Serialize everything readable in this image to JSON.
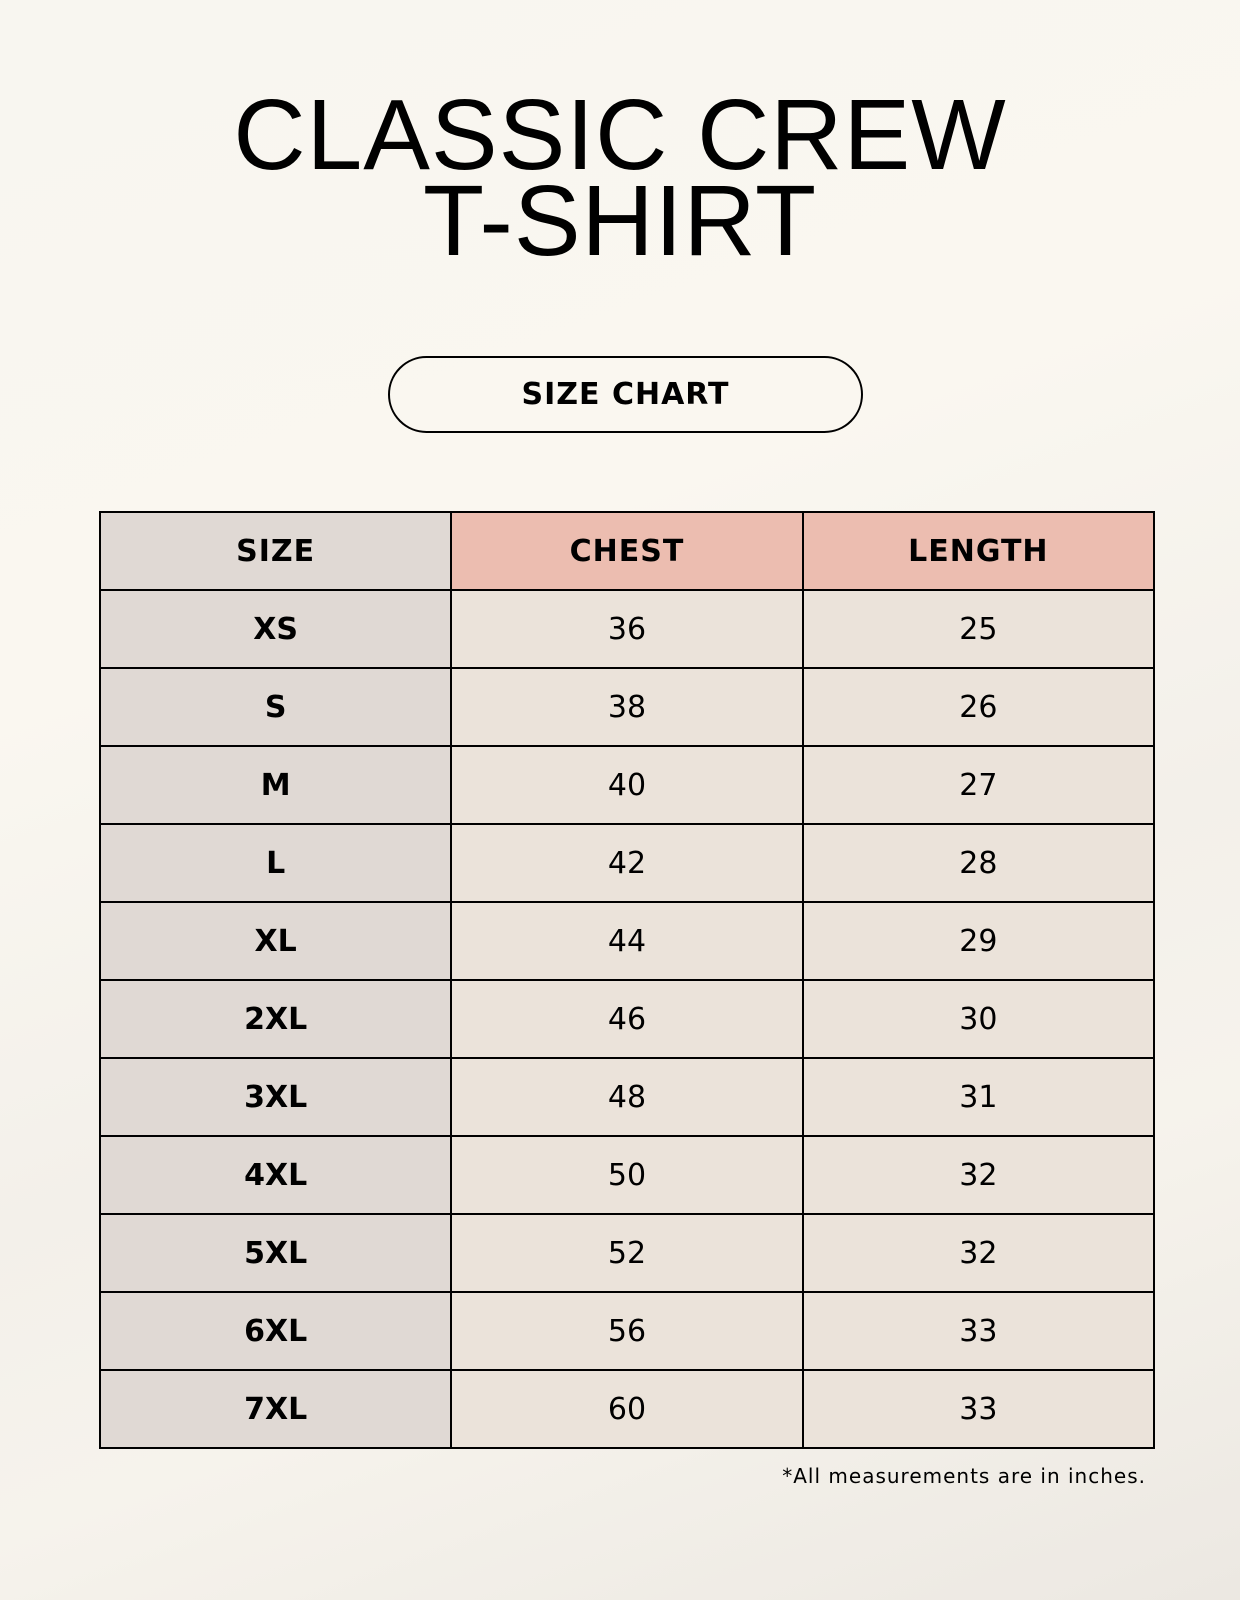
{
  "title": {
    "line1": "CLASSIC CREW",
    "line2": "T-SHIRT"
  },
  "badge": "SIZE CHART",
  "table": {
    "headers": [
      "SIZE",
      "CHEST",
      "LENGTH"
    ],
    "rows": [
      [
        "XS",
        "36",
        "25"
      ],
      [
        "S",
        "38",
        "26"
      ],
      [
        "M",
        "40",
        "27"
      ],
      [
        "L",
        "42",
        "28"
      ],
      [
        "XL",
        "44",
        "29"
      ],
      [
        "2XL",
        "46",
        "30"
      ],
      [
        "3XL",
        "48",
        "31"
      ],
      [
        "4XL",
        "50",
        "32"
      ],
      [
        "5XL",
        "52",
        "32"
      ],
      [
        "6XL",
        "56",
        "33"
      ],
      [
        "7XL",
        "60",
        "33"
      ]
    ]
  },
  "footnote": "*All measurements are in inches.",
  "colors": {
    "header_accent": "#ecbdb0",
    "size_column": "#e0d9d4",
    "value_cells": "#ebe3da"
  }
}
